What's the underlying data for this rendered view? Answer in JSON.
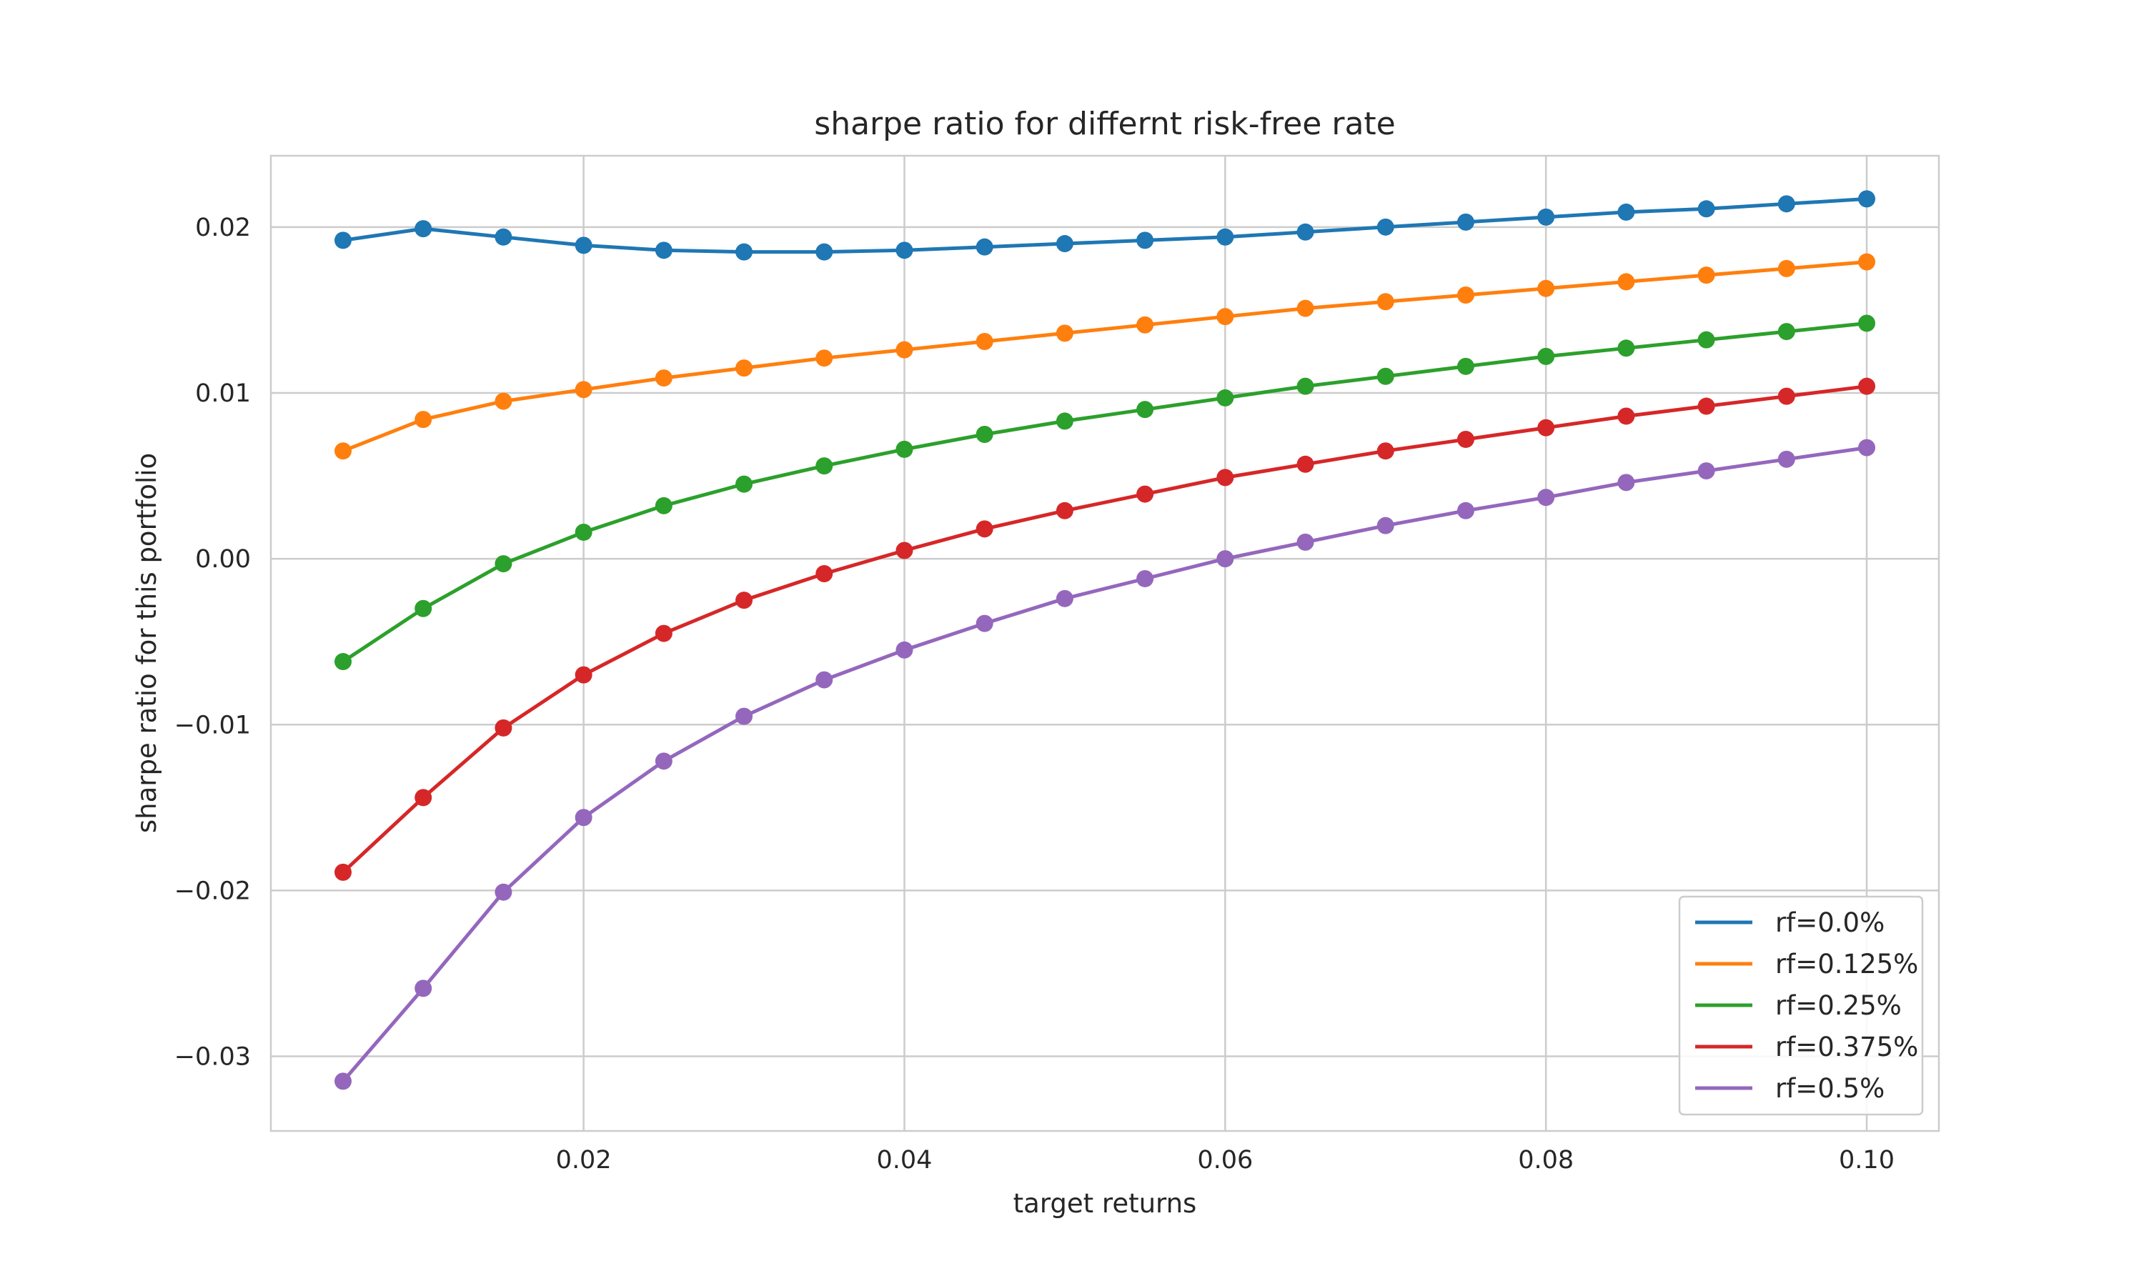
{
  "chart_data": {
    "type": "line",
    "title": "sharpe ratio for differnt risk-free rate",
    "xlabel": "target returns",
    "ylabel": "sharpe ratio for this portfolio",
    "xlim": [
      0.0005,
      0.1045
    ],
    "ylim": [
      -0.0345,
      0.0243
    ],
    "x_ticks": [
      0.02,
      0.04,
      0.06,
      0.08,
      0.1
    ],
    "x_tick_labels": [
      "0.02",
      "0.04",
      "0.06",
      "0.08",
      "0.10"
    ],
    "y_ticks": [
      -0.03,
      -0.02,
      -0.01,
      0.0,
      0.01,
      0.02
    ],
    "y_tick_labels": [
      "−0.03",
      "−0.02",
      "−0.01",
      "0.00",
      "0.01",
      "0.02"
    ],
    "grid": true,
    "legend_position": "bottom-right",
    "x": [
      0.005,
      0.01,
      0.015,
      0.02,
      0.025,
      0.03,
      0.035,
      0.04,
      0.045,
      0.05,
      0.055,
      0.06,
      0.065,
      0.07,
      0.075,
      0.08,
      0.085,
      0.09,
      0.095,
      0.1
    ],
    "series": [
      {
        "name": "rf=0.0%",
        "color": "#1f77b4",
        "values": [
          0.0192,
          0.0199,
          0.0194,
          0.0189,
          0.0186,
          0.0185,
          0.0185,
          0.0186,
          0.0188,
          0.019,
          0.0192,
          0.0194,
          0.0197,
          0.02,
          0.0203,
          0.0206,
          0.0209,
          0.0211,
          0.0214,
          0.0217
        ]
      },
      {
        "name": "rf=0.125%",
        "color": "#ff7f0e",
        "values": [
          0.0065,
          0.0084,
          0.0095,
          0.0102,
          0.0109,
          0.0115,
          0.0121,
          0.0126,
          0.0131,
          0.0136,
          0.0141,
          0.0146,
          0.0151,
          0.0155,
          0.0159,
          0.0163,
          0.0167,
          0.0171,
          0.0175,
          0.0179
        ]
      },
      {
        "name": "rf=0.25%",
        "color": "#2ca02c",
        "values": [
          -0.0062,
          -0.003,
          -0.0003,
          0.0016,
          0.0032,
          0.0045,
          0.0056,
          0.0066,
          0.0075,
          0.0083,
          0.009,
          0.0097,
          0.0104,
          0.011,
          0.0116,
          0.0122,
          0.0127,
          0.0132,
          0.0137,
          0.0142
        ]
      },
      {
        "name": "rf=0.375%",
        "color": "#d62728",
        "values": [
          -0.0189,
          -0.0144,
          -0.0102,
          -0.007,
          -0.0045,
          -0.0025,
          -0.0009,
          0.0005,
          0.0018,
          0.0029,
          0.0039,
          0.0049,
          0.0057,
          0.0065,
          0.0072,
          0.0079,
          0.0086,
          0.0092,
          0.0098,
          0.0104
        ]
      },
      {
        "name": "rf=0.5%",
        "color": "#9467bd",
        "values": [
          -0.0315,
          -0.0259,
          -0.0201,
          -0.0156,
          -0.0122,
          -0.0095,
          -0.0073,
          -0.0055,
          -0.0039,
          -0.0024,
          -0.0012,
          0.0,
          0.001,
          0.002,
          0.0029,
          0.0037,
          0.0046,
          0.0053,
          0.006,
          0.0067
        ]
      }
    ]
  }
}
